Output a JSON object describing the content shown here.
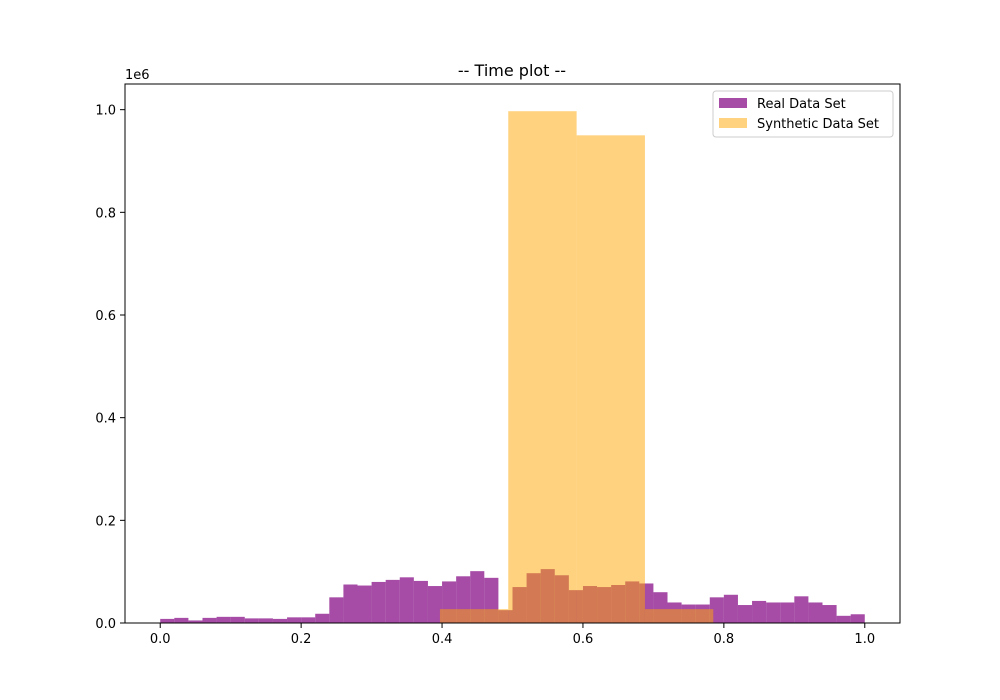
{
  "chart_data": {
    "type": "bar",
    "title": "-- Time plot --",
    "xlabel": "",
    "ylabel": "",
    "y_offset_label": "1e6",
    "y_scale": 1000000,
    "xlim": [
      -0.05,
      1.05
    ],
    "ylim": [
      0,
      1050000
    ],
    "x_ticks": [
      0.0,
      0.2,
      0.4,
      0.6,
      0.8,
      1.0
    ],
    "x_tick_labels": [
      "0.0",
      "0.2",
      "0.4",
      "0.6",
      "0.8",
      "1.0"
    ],
    "y_ticks": [
      0,
      200000,
      400000,
      600000,
      800000,
      1000000
    ],
    "y_tick_labels": [
      "0.0",
      "0.2",
      "0.4",
      "0.6",
      "0.8",
      "1.0"
    ],
    "grid": false,
    "legend_position": "top-right",
    "series": [
      {
        "name": "Real Data Set",
        "color": "#800080",
        "opacity": 0.7,
        "bin_start": 0.0,
        "bin_width": 0.02,
        "values": [
          8000,
          10000,
          5000,
          10000,
          12000,
          12000,
          9000,
          9000,
          8000,
          11000,
          11000,
          18000,
          50000,
          75000,
          73000,
          80000,
          84000,
          89000,
          82000,
          72000,
          81000,
          91000,
          101000,
          88000,
          25000,
          70000,
          97000,
          105000,
          93000,
          64000,
          72000,
          70000,
          74000,
          81000,
          77000,
          60000,
          40000,
          36000,
          36000,
          50000,
          55000,
          35000,
          43000,
          40000,
          40000,
          52000,
          40000,
          35000,
          14000,
          17000
        ]
      },
      {
        "name": "Synthetic Data Set",
        "color": "#FFA500",
        "opacity": 0.5,
        "bin_edges": [
          0.397,
          0.494,
          0.591,
          0.688,
          0.785
        ],
        "values": [
          27000,
          997000,
          950000,
          27000
        ]
      }
    ]
  }
}
